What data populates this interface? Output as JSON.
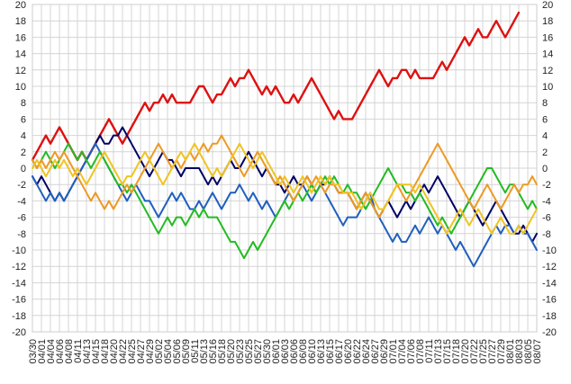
{
  "chart_data": {
    "type": "line",
    "title": "",
    "xlabel": "",
    "ylabel": "",
    "ylim": [
      -20,
      20
    ],
    "y_ticks": [
      -20,
      -18,
      -16,
      -14,
      -12,
      -10,
      -8,
      -6,
      -4,
      -2,
      0,
      2,
      4,
      6,
      8,
      10,
      12,
      14,
      16,
      18,
      20
    ],
    "y_axis_labels": "both-sides",
    "grid": true,
    "legend": "none",
    "x_tick_labels": [
      "03/30",
      "04/01",
      "04/04",
      "04/06",
      "04/08",
      "04/11",
      "04/13",
      "04/15",
      "04/18",
      "04/20",
      "04/22",
      "04/25",
      "04/27",
      "04/29",
      "05/02",
      "05/04",
      "05/06",
      "05/09",
      "05/11",
      "05/13",
      "05/16",
      "05/18",
      "05/20",
      "05/23",
      "05/25",
      "05/27",
      "05/30",
      "06/01",
      "06/03",
      "06/06",
      "06/08",
      "06/10",
      "06/13",
      "06/15",
      "06/17",
      "06/20",
      "06/22",
      "06/24",
      "06/27",
      "06/29",
      "07/01",
      "07/04",
      "07/06",
      "07/08",
      "07/11",
      "07/13",
      "07/15",
      "07/18",
      "07/20",
      "07/22",
      "07/25",
      "07/27",
      "07/29",
      "08/01",
      "08/03",
      "08/05",
      "08/07"
    ],
    "num_points": 113,
    "series": [
      {
        "color": "#dd1111",
        "values": [
          1,
          2,
          3,
          4,
          3,
          4,
          5,
          4,
          3,
          2,
          1,
          2,
          1,
          2,
          3,
          4,
          5,
          6,
          5,
          4,
          3,
          4,
          5,
          6,
          7,
          8,
          7,
          8,
          8,
          9,
          8,
          9,
          8,
          8,
          8,
          8,
          9,
          10,
          10,
          9,
          8,
          9,
          9,
          10,
          11,
          10,
          11,
          11,
          12,
          11,
          10,
          9,
          10,
          9,
          10,
          9,
          8,
          8,
          9,
          8,
          9,
          10,
          11,
          10,
          9,
          8,
          7,
          6,
          7,
          6,
          6,
          6,
          7,
          8,
          9,
          10,
          11,
          12,
          11,
          10,
          11,
          11,
          12,
          12,
          11,
          12,
          11,
          11,
          11,
          11,
          12,
          13,
          12,
          13,
          14,
          15,
          16,
          15,
          16,
          17,
          16,
          16,
          17,
          18,
          17,
          16,
          17,
          18,
          19
        ]
      },
      {
        "color": "#000066",
        "values": [
          -1,
          -2,
          -1,
          -2,
          -3,
          -4,
          -3,
          -4,
          -3,
          -2,
          -1,
          0,
          1,
          2,
          3,
          4,
          3,
          3,
          4,
          4,
          5,
          4,
          3,
          2,
          1,
          0,
          -1,
          0,
          1,
          2,
          1,
          1,
          0,
          -1,
          0,
          0,
          0,
          0,
          -1,
          -2,
          -1,
          -2,
          -1,
          0,
          1,
          0,
          0,
          1,
          2,
          1,
          0,
          -1,
          0,
          -1,
          -2,
          -2,
          -3,
          -2,
          -1,
          -2,
          -2,
          -1,
          -2,
          -3,
          -2,
          -2,
          -1,
          -2,
          -3,
          -3,
          -3,
          -4,
          -5,
          -4,
          -3,
          -4,
          -5,
          -6,
          -5,
          -4,
          -5,
          -6,
          -5,
          -4,
          -5,
          -4,
          -3,
          -2,
          -3,
          -2,
          -1,
          -2,
          -3,
          -4,
          -5,
          -6,
          -5,
          -4,
          -5,
          -6,
          -7,
          -6,
          -5,
          -4,
          -5,
          -6,
          -7,
          -8,
          -8,
          -7,
          -8,
          -9,
          -8
        ]
      },
      {
        "color": "#1f5fbf",
        "values": [
          -1,
          -2,
          -3,
          -4,
          -3,
          -4,
          -3,
          -4,
          -3,
          -2,
          -1,
          0,
          1,
          2,
          3,
          2,
          1,
          0,
          -1,
          -2,
          -3,
          -4,
          -3,
          -2,
          -3,
          -4,
          -4,
          -5,
          -6,
          -5,
          -4,
          -3,
          -4,
          -3,
          -4,
          -5,
          -5,
          -4,
          -5,
          -4,
          -3,
          -4,
          -5,
          -4,
          -3,
          -3,
          -2,
          -3,
          -4,
          -3,
          -4,
          -5,
          -4,
          -5,
          -6,
          -5,
          -4,
          -3,
          -4,
          -3,
          -2,
          -3,
          -4,
          -3,
          -2,
          -3,
          -4,
          -5,
          -6,
          -7,
          -6,
          -6,
          -6,
          -5,
          -4,
          -3,
          -5,
          -6,
          -7,
          -8,
          -9,
          -8,
          -9,
          -9,
          -8,
          -7,
          -8,
          -7,
          -6,
          -7,
          -8,
          -7,
          -8,
          -9,
          -10,
          -9,
          -10,
          -11,
          -12,
          -11,
          -10,
          -9,
          -8,
          -7,
          -8,
          -7,
          -7,
          -8,
          -7,
          -8,
          -8,
          -9,
          -10
        ]
      },
      {
        "color": "#22bb22",
        "values": [
          1,
          0,
          1,
          2,
          1,
          0,
          1,
          2,
          3,
          2,
          1,
          2,
          1,
          0,
          1,
          2,
          1,
          0,
          -1,
          -2,
          -2,
          -3,
          -2,
          -3,
          -4,
          -5,
          -6,
          -7,
          -8,
          -7,
          -6,
          -7,
          -6,
          -6,
          -7,
          -6,
          -5,
          -6,
          -5,
          -6,
          -6,
          -6,
          -7,
          -8,
          -9,
          -9,
          -10,
          -11,
          -10,
          -9,
          -10,
          -9,
          -8,
          -7,
          -6,
          -5,
          -4,
          -5,
          -4,
          -3,
          -4,
          -3,
          -2,
          -3,
          -2,
          -1,
          -2,
          -1,
          -2,
          -3,
          -2,
          -3,
          -3,
          -4,
          -5,
          -4,
          -3,
          -2,
          -1,
          0,
          -1,
          -2,
          -2,
          -3,
          -3,
          -4,
          -3,
          -4,
          -5,
          -6,
          -7,
          -6,
          -7,
          -8,
          -7,
          -6,
          -5,
          -4,
          -3,
          -2,
          -1,
          0,
          0,
          -1,
          -2,
          -3,
          -2,
          -2,
          -3,
          -4,
          -5,
          -4,
          -5
        ]
      },
      {
        "color": "#ee9922",
        "values": [
          1,
          0,
          1,
          0,
          1,
          2,
          1,
          2,
          1,
          0,
          -1,
          -2,
          -3,
          -4,
          -3,
          -4,
          -5,
          -4,
          -5,
          -4,
          -3,
          -2,
          -3,
          -2,
          -1,
          0,
          1,
          2,
          3,
          2,
          1,
          0,
          1,
          0,
          1,
          2,
          1,
          2,
          3,
          2,
          3,
          3,
          4,
          3,
          2,
          1,
          0,
          -1,
          0,
          1,
          2,
          1,
          0,
          -1,
          -2,
          -1,
          -2,
          -3,
          -4,
          -3,
          -2,
          -1,
          -2,
          -1,
          -2,
          -3,
          -2,
          -2,
          -3,
          -3,
          -3,
          -4,
          -5,
          -4,
          -3,
          -4,
          -5,
          -6,
          -5,
          -4,
          -3,
          -2,
          -3,
          -4,
          -3,
          -2,
          -1,
          0,
          1,
          2,
          3,
          2,
          1,
          0,
          -1,
          -2,
          -3,
          -4,
          -5,
          -4,
          -3,
          -2,
          -3,
          -4,
          -5,
          -4,
          -3,
          -2,
          -3,
          -2,
          -2,
          -1,
          -2
        ]
      },
      {
        "color": "#f0c420",
        "values": [
          0,
          1,
          0,
          -1,
          0,
          1,
          0,
          1,
          0,
          -1,
          0,
          -1,
          -2,
          -1,
          0,
          1,
          2,
          1,
          0,
          -1,
          -2,
          -1,
          -1,
          0,
          1,
          2,
          1,
          0,
          -1,
          -2,
          -1,
          0,
          1,
          2,
          1,
          2,
          3,
          2,
          1,
          0,
          -1,
          0,
          -1,
          0,
          1,
          2,
          3,
          2,
          1,
          0,
          1,
          2,
          1,
          0,
          -1,
          -2,
          -1,
          -2,
          -3,
          -2,
          -1,
          -2,
          -3,
          -2,
          -1,
          -2,
          -1,
          -2,
          -2,
          -3,
          -3,
          -3,
          -4,
          -5,
          -4,
          -3,
          -4,
          -5,
          -5,
          -4,
          -3,
          -2,
          -2,
          -2,
          -2,
          -3,
          -2,
          -3,
          -4,
          -5,
          -6,
          -7,
          -8,
          -7,
          -6,
          -5,
          -6,
          -7,
          -6,
          -5,
          -6,
          -7,
          -8,
          -7,
          -6,
          -7,
          -8,
          -8,
          -7,
          -8,
          -7,
          -6,
          -5
        ]
      }
    ]
  }
}
